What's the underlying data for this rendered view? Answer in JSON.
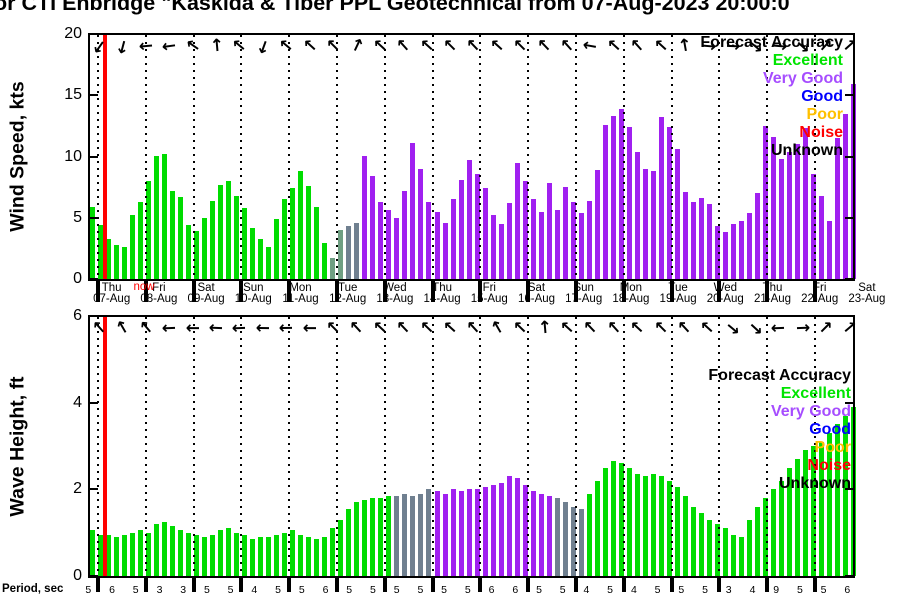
{
  "title": {
    "text": "or CTI Enbridge \"Kaskida & Tiber PPL Geotechnical from 07-Aug-2023 20:00:0"
  },
  "now_label": "now",
  "legend": {
    "title": "Forecast Accuracy",
    "items": [
      {
        "label": "Excellent",
        "color": "#00e400"
      },
      {
        "label": "Very Good",
        "color": "#a64dff"
      },
      {
        "label": "Good",
        "color": "#0000ff"
      },
      {
        "label": "Poor",
        "color": "#ffc000"
      },
      {
        "label": "Noise",
        "color": "#ff0000"
      },
      {
        "label": "Unknown",
        "color": "#000000"
      }
    ]
  },
  "colors": {
    "excellent_bar": "#00dc00",
    "very_good_bar": "#a020f0",
    "transition_slate": "#708090",
    "transition_teal": "#6f9f82",
    "now_line": "#ff0000",
    "axis": "#000000"
  },
  "x_axis": {
    "days": [
      {
        "dow": "Thu",
        "date": "07-Aug"
      },
      {
        "dow": "Fri",
        "date": "08-Aug"
      },
      {
        "dow": "Sat",
        "date": "09-Aug"
      },
      {
        "dow": "Sun",
        "date": "10-Aug"
      },
      {
        "dow": "Mon",
        "date": "11-Aug"
      },
      {
        "dow": "Tue",
        "date": "12-Aug"
      },
      {
        "dow": "Wed",
        "date": "13-Aug"
      },
      {
        "dow": "Thu",
        "date": "14-Aug"
      },
      {
        "dow": "Fri",
        "date": "15-Aug"
      },
      {
        "dow": "Sat",
        "date": "16-Aug"
      },
      {
        "dow": "Sun",
        "date": "17-Aug"
      },
      {
        "dow": "Mon",
        "date": "18-Aug"
      },
      {
        "dow": "Tue",
        "date": "19-Aug"
      },
      {
        "dow": "Wed",
        "date": "20-Aug"
      },
      {
        "dow": "Thu",
        "date": "21-Aug"
      },
      {
        "dow": "Fri",
        "date": "22-Aug"
      },
      {
        "dow": "Sat",
        "date": "23-Aug"
      }
    ]
  },
  "period_axis": {
    "label": "Period, sec",
    "values": [
      5,
      6,
      5,
      3,
      3,
      5,
      5,
      4,
      5,
      5,
      6,
      5,
      5,
      5,
      5,
      5,
      5,
      6,
      6,
      5,
      5,
      4,
      5,
      4,
      5,
      5,
      5,
      3,
      4,
      9,
      5,
      5,
      6
    ]
  },
  "chart_data": [
    {
      "type": "bar",
      "name": "wind",
      "title": "Wind Speed forecast",
      "ylabel": "Wind Speed, kts",
      "ylim": [
        0,
        20
      ],
      "yticks": [
        0,
        5,
        10,
        15,
        20
      ],
      "values": [
        5.9,
        4.4,
        3.3,
        2.8,
        2.6,
        5.2,
        6.3,
        8.0,
        10.0,
        10.2,
        7.2,
        6.7,
        4.4,
        3.9,
        5.0,
        6.4,
        7.7,
        8.0,
        6.8,
        5.8,
        4.2,
        3.3,
        2.6,
        4.9,
        6.5,
        7.4,
        8.8,
        7.6,
        5.9,
        2.9,
        1.7,
        4.0,
        4.3,
        4.6,
        10.0,
        8.4,
        6.3,
        5.6,
        5.0,
        7.2,
        11.1,
        9.0,
        6.3,
        5.5,
        4.6,
        6.5,
        8.1,
        9.7,
        8.6,
        7.4,
        5.2,
        4.5,
        6.2,
        9.5,
        8.0,
        6.5,
        5.5,
        7.8,
        5.6,
        7.5,
        6.3,
        5.4,
        6.4,
        8.9,
        12.6,
        13.3,
        13.9,
        12.4,
        10.4,
        9.0,
        8.8,
        13.2,
        12.4,
        10.6,
        7.1,
        6.3,
        6.6,
        6.1,
        4.3,
        3.8,
        4.5,
        4.7,
        5.4,
        7.0,
        12.5,
        11.6,
        9.8,
        10.4,
        11.0,
        12.3,
        8.6,
        6.8,
        4.7,
        11.5,
        13.5,
        15.9
      ],
      "colors": [
        "g",
        "g",
        "g",
        "g",
        "g",
        "g",
        "g",
        "g",
        "g",
        "g",
        "g",
        "g",
        "g",
        "g",
        "g",
        "g",
        "g",
        "g",
        "g",
        "g",
        "g",
        "g",
        "g",
        "g",
        "g",
        "g",
        "g",
        "g",
        "g",
        "g",
        "t",
        "t",
        "s",
        "s",
        "p",
        "p",
        "p",
        "p",
        "p",
        "p",
        "p",
        "p",
        "p",
        "p",
        "p",
        "p",
        "p",
        "p",
        "p",
        "p",
        "p",
        "p",
        "p",
        "p",
        "p",
        "p",
        "p",
        "p",
        "p",
        "p",
        "p",
        "p",
        "p",
        "p",
        "p",
        "p",
        "p",
        "p",
        "p",
        "p",
        "p",
        "p",
        "p",
        "p",
        "p",
        "p",
        "p",
        "p",
        "p",
        "p",
        "p",
        "p",
        "p",
        "p",
        "p",
        "p",
        "p",
        "p",
        "p",
        "p",
        "p",
        "p",
        "p",
        "p",
        "p",
        "p"
      ],
      "arrows_deg": [
        215,
        195,
        265,
        262,
        305,
        355,
        310,
        200,
        310,
        312,
        315,
        25,
        312,
        318,
        312,
        315,
        316,
        312,
        315,
        316,
        318,
        280,
        312,
        318,
        312,
        350,
        95,
        92,
        130,
        95,
        132,
        42,
        48
      ]
    },
    {
      "type": "bar",
      "name": "wave",
      "title": "Wave Height forecast",
      "ylabel": "Wave Height, ft",
      "ylim": [
        0,
        6
      ],
      "yticks": [
        0,
        2,
        4,
        6
      ],
      "values": [
        1.05,
        0.95,
        0.95,
        0.9,
        0.95,
        1.0,
        1.05,
        1.0,
        1.2,
        1.25,
        1.15,
        1.05,
        1.0,
        0.95,
        0.9,
        0.95,
        1.05,
        1.1,
        1.0,
        0.95,
        0.85,
        0.9,
        0.9,
        0.95,
        1.0,
        1.05,
        0.95,
        0.9,
        0.85,
        0.9,
        1.1,
        1.3,
        1.55,
        1.7,
        1.75,
        1.8,
        1.8,
        1.85,
        1.85,
        1.9,
        1.85,
        1.9,
        2.0,
        1.95,
        1.9,
        2.0,
        1.95,
        2.0,
        2.0,
        2.05,
        2.1,
        2.15,
        2.3,
        2.25,
        2.1,
        1.95,
        1.9,
        1.85,
        1.8,
        1.7,
        1.6,
        1.55,
        1.9,
        2.2,
        2.5,
        2.65,
        2.6,
        2.5,
        2.35,
        2.3,
        2.35,
        2.3,
        2.2,
        2.05,
        1.85,
        1.6,
        1.45,
        1.3,
        1.2,
        1.1,
        0.95,
        0.9,
        1.3,
        1.6,
        1.8,
        2.0,
        2.2,
        2.5,
        2.7,
        2.9,
        3.0,
        3.1,
        3.3,
        3.5,
        3.7,
        3.9
      ],
      "colors": [
        "g",
        "g",
        "g",
        "g",
        "g",
        "g",
        "g",
        "g",
        "g",
        "g",
        "g",
        "g",
        "g",
        "g",
        "g",
        "g",
        "g",
        "g",
        "g",
        "g",
        "g",
        "g",
        "g",
        "g",
        "g",
        "g",
        "g",
        "g",
        "g",
        "g",
        "g",
        "g",
        "g",
        "g",
        "g",
        "g",
        "g",
        "g",
        "s",
        "s",
        "s",
        "s",
        "s",
        "p",
        "p",
        "p",
        "p",
        "p",
        "p",
        "p",
        "p",
        "p",
        "p",
        "p",
        "p",
        "p",
        "p",
        "p",
        "s",
        "s",
        "s",
        "s",
        "g",
        "g",
        "g",
        "g",
        "g",
        "g",
        "g",
        "g",
        "g",
        "g",
        "g",
        "g",
        "g",
        "g",
        "g",
        "g",
        "g",
        "g",
        "g",
        "g",
        "g",
        "g",
        "g",
        "g",
        "g",
        "g",
        "g",
        "g",
        "g",
        "g",
        "g",
        "g",
        "g",
        "g"
      ],
      "arrows_deg": [
        318,
        330,
        320,
        268,
        270,
        272,
        268,
        271,
        269,
        270,
        315,
        317,
        313,
        316,
        314,
        312,
        317,
        330,
        314,
        355,
        312,
        316,
        318,
        313,
        315,
        317,
        312,
        130,
        133,
        268,
        88,
        45,
        50
      ]
    }
  ]
}
